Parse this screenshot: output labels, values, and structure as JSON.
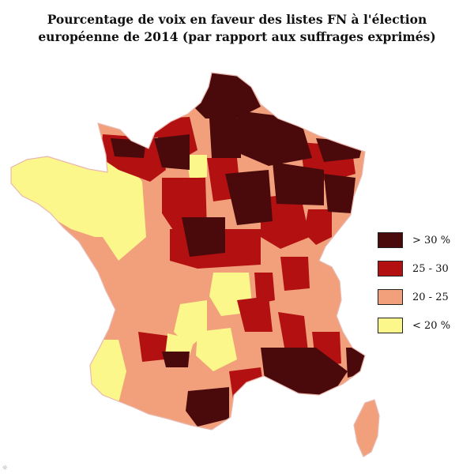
{
  "title_line1": "Pourcentage de voix en faveur des listes FN à l'élection",
  "title_line2": "européenne de 2014 (par rapport aux suffrages exprimés)",
  "legend": [
    {
      "label": "> 30 %",
      "color": "#4a0a0c"
    },
    {
      "label": "25 - 30",
      "color": "#b31012"
    },
    {
      "label": "20 - 25",
      "color": "#f2a07c"
    },
    {
      "label": "< 20 %",
      "color": "#fbf78a"
    }
  ],
  "colors": {
    "very_high": "#4a0a0c",
    "high": "#b31012",
    "medium": "#f2a07c",
    "low": "#fbf78a",
    "border": "#e8b8b0"
  }
}
